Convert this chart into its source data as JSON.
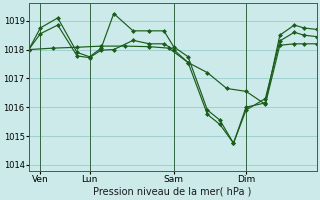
{
  "bg_color": "#cceaea",
  "grid_color": "#99cccc",
  "line_color": "#1a5c1a",
  "vline_color": "#336644",
  "ylim": [
    1013.8,
    1019.6
  ],
  "yticks": [
    1014,
    1015,
    1016,
    1017,
    1018,
    1019
  ],
  "xlabel": "Pression niveau de la mer( hPa )",
  "xtick_positions": [
    22,
    73,
    160,
    235
  ],
  "xtick_labels": [
    "Ven",
    "Lun",
    "Sam",
    "Dim"
  ],
  "vline_positions": [
    22,
    73,
    160,
    235
  ],
  "xlim": [
    10,
    308
  ],
  "line1_pts": [
    [
      10,
      1018.0
    ],
    [
      22,
      1018.75
    ],
    [
      40,
      1019.1
    ],
    [
      60,
      1017.9
    ],
    [
      73,
      1017.75
    ],
    [
      85,
      1018.05
    ],
    [
      98,
      1019.25
    ],
    [
      118,
      1018.65
    ],
    [
      135,
      1018.65
    ],
    [
      150,
      1018.65
    ],
    [
      160,
      1018.1
    ],
    [
      175,
      1017.75
    ],
    [
      195,
      1015.9
    ],
    [
      208,
      1015.55
    ],
    [
      222,
      1014.75
    ],
    [
      235,
      1016.0
    ],
    [
      255,
      1016.15
    ],
    [
      270,
      1018.5
    ],
    [
      285,
      1018.85
    ],
    [
      295,
      1018.75
    ],
    [
      308,
      1018.7
    ]
  ],
  "line2_pts": [
    [
      10,
      1018.0
    ],
    [
      22,
      1018.55
    ],
    [
      40,
      1018.85
    ],
    [
      60,
      1017.78
    ],
    [
      73,
      1017.72
    ],
    [
      85,
      1017.98
    ],
    [
      98,
      1018.0
    ],
    [
      118,
      1018.32
    ],
    [
      135,
      1018.2
    ],
    [
      150,
      1018.2
    ],
    [
      160,
      1018.0
    ],
    [
      175,
      1017.55
    ],
    [
      195,
      1015.75
    ],
    [
      208,
      1015.4
    ],
    [
      222,
      1014.75
    ],
    [
      235,
      1015.9
    ],
    [
      255,
      1016.3
    ],
    [
      270,
      1018.3
    ],
    [
      285,
      1018.6
    ],
    [
      295,
      1018.5
    ],
    [
      308,
      1018.45
    ]
  ],
  "line3_pts": [
    [
      10,
      1018.0
    ],
    [
      35,
      1018.05
    ],
    [
      60,
      1018.08
    ],
    [
      85,
      1018.12
    ],
    [
      110,
      1018.12
    ],
    [
      135,
      1018.1
    ],
    [
      155,
      1018.05
    ],
    [
      175,
      1017.55
    ],
    [
      195,
      1017.2
    ],
    [
      215,
      1016.65
    ],
    [
      235,
      1016.55
    ],
    [
      255,
      1016.1
    ],
    [
      270,
      1018.15
    ],
    [
      285,
      1018.2
    ],
    [
      295,
      1018.2
    ],
    [
      308,
      1018.2
    ]
  ],
  "markersize": 2.5,
  "linewidth": 0.85
}
